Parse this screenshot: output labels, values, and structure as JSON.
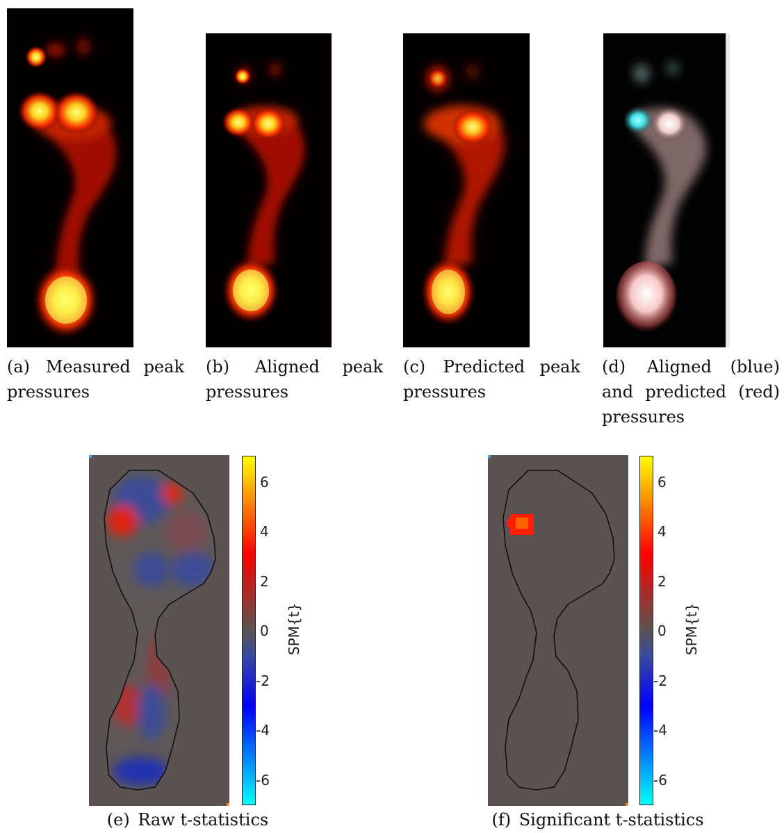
{
  "colors": {
    "background_gray": "#5b5352",
    "heat_low": "#000000",
    "heat_mid": "#ff2a00",
    "heat_high": "#ffff40",
    "overlay_blue": "#40e8f0",
    "overlay_red": "#ffb8b8",
    "cmap_blue_low": "#00ffff",
    "cmap_mid": "#5b5352",
    "cmap_red_high": "#ffff00"
  },
  "captions": {
    "a": {
      "tag": "(a)",
      "text": "Measured peak pressures"
    },
    "b": {
      "tag": "(b)",
      "text": "Aligned peak pressures"
    },
    "c": {
      "tag": "(c)",
      "text": "Predicted peak pressures"
    },
    "d": {
      "tag": "(d)",
      "text": "Aligned (blue) and predicted (red) pressures"
    },
    "e": {
      "tag": "(e)",
      "text": "Raw t-statistics"
    },
    "f": {
      "tag": "(f)",
      "text": "Significant t-statistics"
    }
  },
  "colorbar": {
    "label": "SPM{t}",
    "ticks": [
      "6",
      "4",
      "2",
      "0",
      "-2",
      "-4",
      "-6"
    ],
    "range": [
      -7,
      7
    ]
  }
}
